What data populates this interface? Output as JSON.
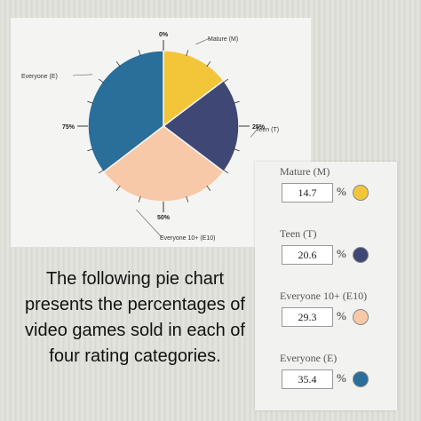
{
  "chart_data": {
    "type": "pie",
    "categories": [
      "Mature (M)",
      "Teen (T)",
      "Everyone 10+ (E10)",
      "Everyone (E)"
    ],
    "values": [
      14.7,
      20.6,
      29.3,
      35.4
    ],
    "colors": [
      "#f3c63a",
      "#3f4775",
      "#f8c9a8",
      "#2a6e9a"
    ],
    "tick_labels": [
      "0%",
      "25%",
      "50%",
      "75%"
    ],
    "slice_labels": [
      "Mature (M)",
      "Teen (T)",
      "Everyone 10+ (E10)",
      "Everyone (E)"
    ]
  },
  "caption": "The following pie chart presents the percentages of video games sold in each of four rating categories.",
  "entries": [
    {
      "label": "Mature (M)",
      "value": "14.7",
      "unit": "%",
      "color": "#f3c63a"
    },
    {
      "label": "Teen (T)",
      "value": "20.6",
      "unit": "%",
      "color": "#3f4775"
    },
    {
      "label": "Everyone 10+ (E10)",
      "value": "29.3",
      "unit": "%",
      "color": "#f8c9a8"
    },
    {
      "label": "Everyone (E)",
      "value": "35.4",
      "unit": "%",
      "color": "#2a6e9a"
    }
  ]
}
